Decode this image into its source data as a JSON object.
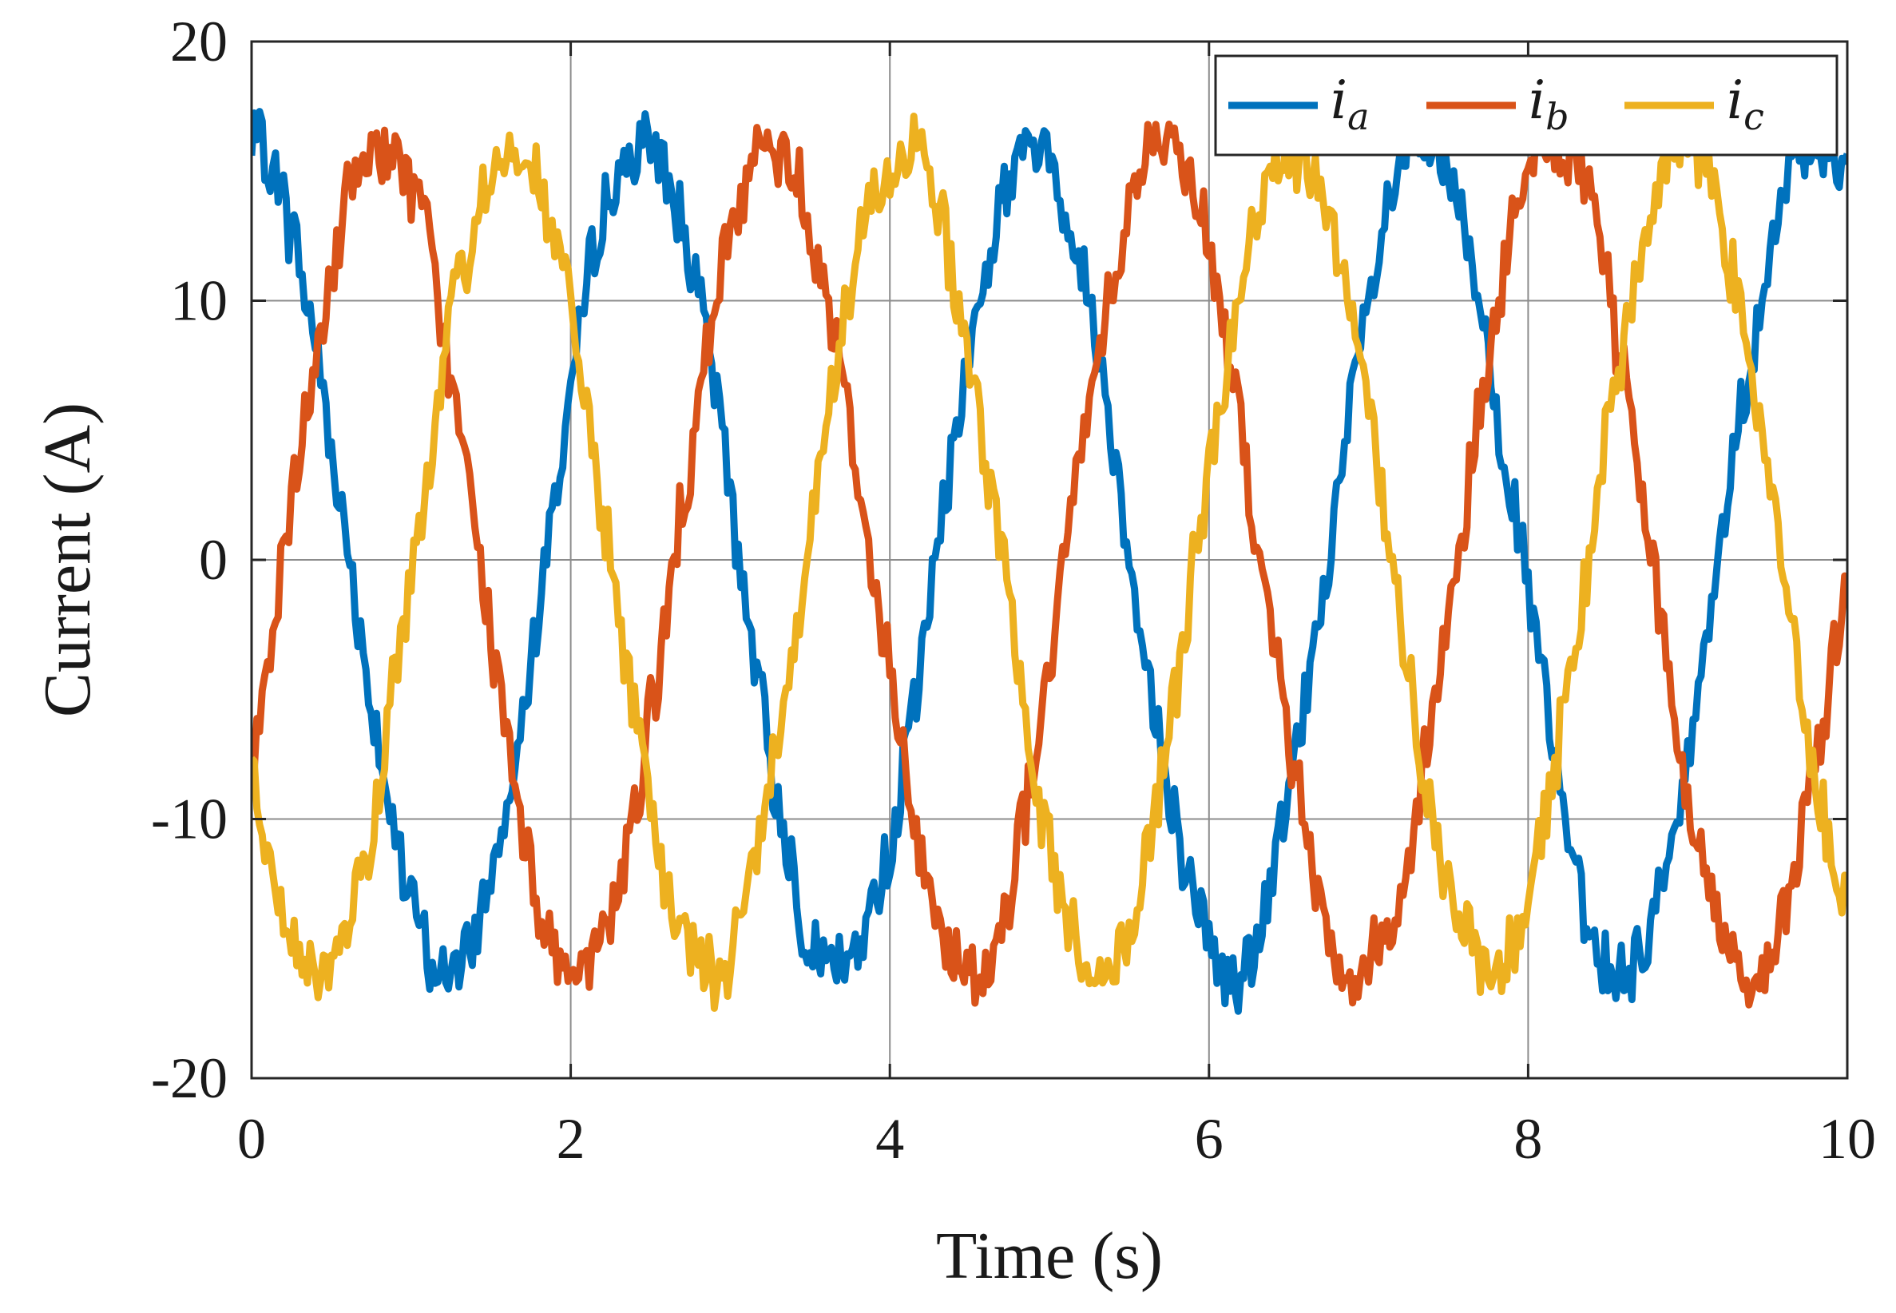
{
  "chart_data": {
    "type": "line",
    "xlabel": "Time (s)",
    "ylabel": "Current (A)",
    "xlim": [
      0,
      10
    ],
    "ylim": [
      -20,
      20
    ],
    "xticks": [
      0,
      2,
      4,
      6,
      8,
      10
    ],
    "xtick_labels": [
      "0",
      "2",
      "4",
      "6",
      "8",
      "10"
    ],
    "yticks": [
      20,
      10,
      0,
      -10,
      -20
    ],
    "ytick_labels": [
      "20",
      "10",
      "0",
      "-10",
      "-20"
    ],
    "grid": true,
    "legend_position": "top-right",
    "legend_orientation": "horizontal",
    "waveform": {
      "shape": "sinusoid",
      "amplitude_A": 16,
      "period_s": 2.45,
      "phase_shift_deg": 120,
      "ripple_A": 1.5,
      "samples": 600
    },
    "series": [
      {
        "name": "i_a",
        "label_main": "i",
        "label_sub": "a",
        "color": "#0072BD",
        "phase_deg": 90,
        "approx_peaks_A": [
          17.5,
          17.8,
          18.5,
          16.5,
          16.5
        ],
        "approx_troughs_A": [
          -16.5,
          -16.5,
          -16.0,
          -17.5
        ]
      },
      {
        "name": "i_b",
        "label_main": "i",
        "label_sub": "b",
        "color": "#D95319",
        "phase_deg": -30,
        "approx_peaks_A": [
          17.0,
          17.0,
          16.5,
          16.5
        ],
        "approx_troughs_A": [
          -18.0,
          -17.0,
          -16.5,
          -16.5
        ]
      },
      {
        "name": "i_c",
        "label_main": "i",
        "label_sub": "c",
        "color": "#EDB120",
        "phase_deg": 210,
        "approx_peaks_A": [
          17.0,
          17.0,
          16.0,
          16.5
        ],
        "approx_troughs_A": [
          -16.5,
          -17.0,
          -17.5,
          -18.0
        ]
      }
    ]
  }
}
